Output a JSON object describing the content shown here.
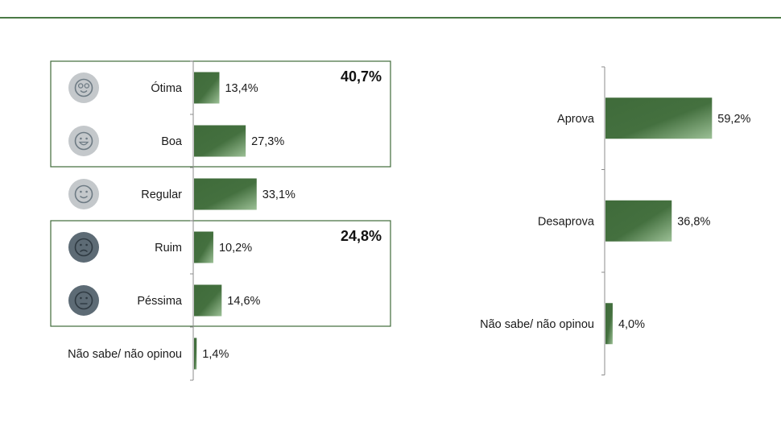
{
  "theme": {
    "accent": "#3f6b3a",
    "accent_light": "#8bb088",
    "rule": "#4a7a45",
    "axis": "#8c8c8c",
    "face_light": "#c4c8cb",
    "face_dark": "#5d6b75",
    "face_glyph_light": "#6e7b84",
    "face_glyph_dark": "#2f3a42"
  },
  "groups": {
    "positive_total": "40,7%",
    "negative_total": "24,8%"
  },
  "chart_data": [
    {
      "type": "bar",
      "orientation": "horizontal",
      "categories": [
        "Ótima",
        "Boa",
        "Regular",
        "Ruim",
        "Péssima",
        "Não sabe/ não opinou"
      ],
      "values": [
        13.4,
        27.3,
        33.1,
        10.2,
        14.6,
        1.4
      ],
      "value_labels": [
        "13,4%",
        "27,3%",
        "33,1%",
        "10,2%",
        "14,6%",
        "1,4%"
      ],
      "icons": [
        "starry-eyes-face-icon",
        "grinning-face-icon",
        "smiling-face-icon",
        "frowning-face-icon",
        "neutral-face-icon",
        "none"
      ],
      "title": "",
      "xlabel": "",
      "ylabel": "",
      "xlim": [
        0,
        100
      ],
      "grid": false
    },
    {
      "type": "bar",
      "orientation": "horizontal",
      "categories": [
        "Aprova",
        "Desaprova",
        "Não sabe/ não opinou"
      ],
      "values": [
        59.2,
        36.8,
        4.0
      ],
      "value_labels": [
        "59,2%",
        "36,8%",
        "4,0%"
      ],
      "title": "",
      "xlabel": "",
      "ylabel": "",
      "xlim": [
        0,
        100
      ],
      "grid": false
    }
  ]
}
